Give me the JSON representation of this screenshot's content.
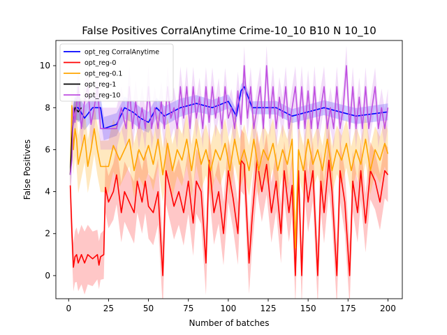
{
  "chart_data": {
    "type": "line",
    "title": "False Positives CorralAnytime Crime-10_10 B10 N 10_10",
    "xlabel": "Number of batches",
    "ylabel": "False Positives",
    "xlim": [
      -8,
      209
    ],
    "ylim": [
      -1.1,
      11.2
    ],
    "xticks": [
      0,
      25,
      50,
      75,
      100,
      125,
      150,
      175,
      200
    ],
    "yticks": [
      0,
      2,
      4,
      6,
      8,
      10
    ],
    "grid": false,
    "legend_position": "top-left",
    "series": [
      {
        "name": "opt_reg CorralAnytime",
        "color": "#0000ff",
        "band_alpha": 0.2,
        "knots": [
          [
            1,
            4.8
          ],
          [
            2,
            7.0
          ],
          [
            3,
            7.6
          ],
          [
            4,
            8.0
          ],
          [
            6,
            8.0
          ],
          [
            10,
            7.5
          ],
          [
            15,
            8.0
          ],
          [
            20,
            8.0
          ],
          [
            22,
            7.0
          ],
          [
            30,
            7.2
          ],
          [
            35,
            8.0
          ],
          [
            40,
            7.8
          ],
          [
            45,
            7.5
          ],
          [
            50,
            7.3
          ],
          [
            55,
            8.0
          ],
          [
            60,
            7.6
          ],
          [
            70,
            8.0
          ],
          [
            80,
            8.2
          ],
          [
            90,
            8.0
          ],
          [
            100,
            8.3
          ],
          [
            105,
            7.6
          ],
          [
            108,
            8.8
          ],
          [
            110,
            9.0
          ],
          [
            115,
            8.0
          ],
          [
            130,
            8.0
          ],
          [
            140,
            7.6
          ],
          [
            160,
            8.0
          ],
          [
            180,
            7.6
          ],
          [
            200,
            7.8
          ]
        ],
        "band_knots": [
          [
            1,
            0.6
          ],
          [
            50,
            0.5
          ],
          [
            110,
            0.3
          ],
          [
            200,
            0.4
          ]
        ]
      },
      {
        "name": "opt_reg-0",
        "color": "#ff0000",
        "band_alpha": 0.22,
        "knots": [
          [
            1,
            4.3
          ],
          [
            2,
            2.1
          ],
          [
            3,
            0.4
          ],
          [
            4,
            0.9
          ],
          [
            5,
            1.0
          ],
          [
            6,
            0.6
          ],
          [
            8,
            1.0
          ],
          [
            10,
            0.6
          ],
          [
            12,
            1.0
          ],
          [
            15,
            0.8
          ],
          [
            18,
            1.0
          ],
          [
            19,
            0.5
          ],
          [
            20,
            0.9
          ],
          [
            22,
            1.0
          ],
          [
            23,
            4.2
          ],
          [
            25,
            3.5
          ],
          [
            28,
            4.0
          ],
          [
            30,
            4.8
          ],
          [
            33,
            3.0
          ],
          [
            35,
            4.0
          ],
          [
            38,
            3.5
          ],
          [
            41,
            3.0
          ],
          [
            43,
            4.5
          ],
          [
            46,
            3.5
          ],
          [
            48,
            4.5
          ],
          [
            50,
            3.3
          ],
          [
            53,
            3.0
          ],
          [
            56,
            4.0
          ],
          [
            59,
            0.0
          ],
          [
            61,
            5.0
          ],
          [
            64,
            4.0
          ],
          [
            66,
            3.3
          ],
          [
            69,
            4.0
          ],
          [
            72,
            3.0
          ],
          [
            75,
            4.5
          ],
          [
            78,
            2.5
          ],
          [
            80,
            4.5
          ],
          [
            83,
            4.0
          ],
          [
            86,
            0.6
          ],
          [
            88,
            5.5
          ],
          [
            91,
            3.0
          ],
          [
            94,
            4.0
          ],
          [
            97,
            2.0
          ],
          [
            100,
            5.0
          ],
          [
            103,
            3.7
          ],
          [
            106,
            2.0
          ],
          [
            108,
            5.5
          ],
          [
            110,
            5.3
          ],
          [
            113,
            0.6
          ],
          [
            115,
            2.8
          ],
          [
            118,
            5.5
          ],
          [
            121,
            4.0
          ],
          [
            124,
            5.3
          ],
          [
            127,
            3.0
          ],
          [
            130,
            4.5
          ],
          [
            133,
            2.0
          ],
          [
            135,
            5.0
          ],
          [
            138,
            3.0
          ],
          [
            140,
            4.3
          ],
          [
            142,
            0.0
          ],
          [
            144,
            5.0
          ],
          [
            146,
            0.0
          ],
          [
            148,
            5.0
          ],
          [
            150,
            3.5
          ],
          [
            153,
            5.0
          ],
          [
            156,
            0.0
          ],
          [
            158,
            4.5
          ],
          [
            160,
            3.0
          ],
          [
            163,
            5.5
          ],
          [
            165,
            4.0
          ],
          [
            168,
            0.0
          ],
          [
            170,
            5.0
          ],
          [
            173,
            3.5
          ],
          [
            176,
            0.0
          ],
          [
            178,
            4.5
          ],
          [
            181,
            3.0
          ],
          [
            183,
            5.0
          ],
          [
            186,
            2.5
          ],
          [
            189,
            5.0
          ],
          [
            192,
            4.5
          ],
          [
            195,
            3.5
          ],
          [
            198,
            5.0
          ],
          [
            200,
            4.8
          ]
        ],
        "band_knots": [
          [
            1,
            1.0
          ],
          [
            5,
            1.3
          ],
          [
            10,
            1.5
          ],
          [
            20,
            1.1
          ],
          [
            30,
            1.4
          ],
          [
            60,
            1.6
          ],
          [
            100,
            1.5
          ],
          [
            140,
            1.4
          ],
          [
            170,
            1.5
          ],
          [
            200,
            1.3
          ]
        ]
      },
      {
        "name": "opt_reg-0.1",
        "color": "#ffa500",
        "band_alpha": 0.25,
        "knots": [
          [
            1,
            4.8
          ],
          [
            2,
            8.1
          ],
          [
            3,
            6.0
          ],
          [
            4,
            7.0
          ],
          [
            5,
            6.5
          ],
          [
            6,
            5.3
          ],
          [
            8,
            6.0
          ],
          [
            10,
            6.7
          ],
          [
            12,
            5.2
          ],
          [
            14,
            6.0
          ],
          [
            16,
            7.0
          ],
          [
            18,
            6.0
          ],
          [
            20,
            5.2
          ],
          [
            25,
            5.2
          ],
          [
            28,
            6.2
          ],
          [
            32,
            5.5
          ],
          [
            35,
            6.0
          ],
          [
            38,
            6.5
          ],
          [
            41,
            5.0
          ],
          [
            44,
            6.0
          ],
          [
            47,
            5.5
          ],
          [
            50,
            6.2
          ],
          [
            53,
            5.3
          ],
          [
            56,
            6.5
          ],
          [
            59,
            4.8
          ],
          [
            62,
            6.3
          ],
          [
            65,
            5.0
          ],
          [
            68,
            6.0
          ],
          [
            71,
            5.5
          ],
          [
            74,
            6.5
          ],
          [
            77,
            5.0
          ],
          [
            80,
            6.5
          ],
          [
            83,
            5.3
          ],
          [
            86,
            6.0
          ],
          [
            89,
            5.0
          ],
          [
            92,
            6.0
          ],
          [
            95,
            5.5
          ],
          [
            98,
            6.3
          ],
          [
            101,
            5.0
          ],
          [
            104,
            6.5
          ],
          [
            107,
            5.3
          ],
          [
            110,
            6.0
          ],
          [
            113,
            5.0
          ],
          [
            116,
            6.5
          ],
          [
            119,
            5.0
          ],
          [
            122,
            6.0
          ],
          [
            125,
            5.5
          ],
          [
            128,
            6.3
          ],
          [
            131,
            5.0
          ],
          [
            134,
            6.0
          ],
          [
            137,
            5.3
          ],
          [
            140,
            6.5
          ],
          [
            142,
            1.3
          ],
          [
            144,
            6.0
          ],
          [
            147,
            5.0
          ],
          [
            150,
            6.5
          ],
          [
            153,
            5.3
          ],
          [
            156,
            6.0
          ],
          [
            159,
            5.0
          ],
          [
            162,
            6.5
          ],
          [
            165,
            5.0
          ],
          [
            168,
            6.0
          ],
          [
            171,
            5.5
          ],
          [
            174,
            6.3
          ],
          [
            177,
            5.0
          ],
          [
            180,
            6.0
          ],
          [
            183,
            5.3
          ],
          [
            186,
            6.5
          ],
          [
            189,
            5.0
          ],
          [
            192,
            6.0
          ],
          [
            195,
            5.5
          ],
          [
            198,
            6.3
          ],
          [
            200,
            5.8
          ]
        ],
        "band_knots": [
          [
            1,
            1.0
          ],
          [
            5,
            1.4
          ],
          [
            15,
            1.2
          ],
          [
            40,
            1.3
          ],
          [
            100,
            1.2
          ],
          [
            150,
            1.2
          ],
          [
            200,
            1.1
          ]
        ]
      },
      {
        "name": "opt_reg-1",
        "color": "#000000",
        "band_alpha": 0.18,
        "knots": [
          [
            1,
            4.8
          ],
          [
            2,
            6.5
          ],
          [
            3,
            7.6
          ],
          [
            4,
            8.0
          ],
          [
            6,
            7.8
          ],
          [
            8,
            8.0
          ]
        ],
        "band_knots": [
          [
            1,
            0.5
          ],
          [
            8,
            0.5
          ]
        ]
      },
      {
        "name": "opt_reg-10",
        "color": "#bf4fe0",
        "band_alpha": 0.2,
        "knots": [
          [
            1,
            4.8
          ],
          [
            2,
            5.5
          ],
          [
            3,
            8.0
          ],
          [
            4,
            7.3
          ],
          [
            6,
            9.0
          ],
          [
            8,
            7.0
          ],
          [
            10,
            8.3
          ],
          [
            12,
            9.0
          ],
          [
            14,
            7.2
          ],
          [
            16,
            8.0
          ],
          [
            18,
            9.0
          ],
          [
            20,
            7.0
          ],
          [
            22,
            7.0
          ],
          [
            30,
            7.0
          ],
          [
            33,
            8.0
          ],
          [
            36,
            7.0
          ],
          [
            38,
            9.0
          ],
          [
            40,
            7.0
          ],
          [
            42,
            8.3
          ],
          [
            44,
            7.0
          ],
          [
            46,
            8.0
          ],
          [
            48,
            7.0
          ],
          [
            50,
            9.0
          ],
          [
            52,
            7.0
          ],
          [
            54,
            8.0
          ],
          [
            56,
            7.0
          ],
          [
            58,
            8.3
          ],
          [
            60,
            7.0
          ],
          [
            62,
            9.0
          ],
          [
            64,
            7.5
          ],
          [
            66,
            8.0
          ],
          [
            68,
            7.0
          ],
          [
            70,
            9.0
          ],
          [
            72,
            7.5
          ],
          [
            74,
            9.0
          ],
          [
            76,
            7.0
          ],
          [
            78,
            9.0
          ],
          [
            80,
            7.5
          ],
          [
            82,
            8.5
          ],
          [
            84,
            7.0
          ],
          [
            86,
            9.0
          ],
          [
            88,
            7.3
          ],
          [
            90,
            9.0
          ],
          [
            92,
            7.5
          ],
          [
            94,
            8.5
          ],
          [
            96,
            7.0
          ],
          [
            98,
            9.0
          ],
          [
            100,
            7.5
          ],
          [
            102,
            8.0
          ],
          [
            104,
            7.0
          ],
          [
            106,
            8.8
          ],
          [
            108,
            7.2
          ],
          [
            110,
            10.0
          ],
          [
            112,
            7.5
          ],
          [
            114,
            9.0
          ],
          [
            116,
            7.0
          ],
          [
            118,
            8.0
          ],
          [
            120,
            9.0
          ],
          [
            122,
            7.0
          ],
          [
            124,
            10.0
          ],
          [
            126,
            7.5
          ],
          [
            128,
            9.0
          ],
          [
            130,
            7.0
          ],
          [
            132,
            8.5
          ],
          [
            134,
            7.5
          ],
          [
            136,
            9.0
          ],
          [
            138,
            7.0
          ],
          [
            140,
            8.0
          ],
          [
            142,
            9.0
          ],
          [
            144,
            7.0
          ],
          [
            146,
            9.0
          ],
          [
            148,
            7.0
          ],
          [
            150,
            8.8
          ],
          [
            152,
            7.0
          ],
          [
            154,
            9.0
          ],
          [
            156,
            7.0
          ],
          [
            158,
            8.0
          ],
          [
            160,
            9.0
          ],
          [
            162,
            7.0
          ],
          [
            164,
            8.0
          ],
          [
            166,
            7.0
          ],
          [
            168,
            9.0
          ],
          [
            170,
            7.0
          ],
          [
            172,
            8.0
          ],
          [
            174,
            10.0
          ],
          [
            176,
            7.0
          ],
          [
            178,
            9.0
          ],
          [
            180,
            7.0
          ],
          [
            182,
            8.5
          ],
          [
            184,
            7.0
          ],
          [
            186,
            9.0
          ],
          [
            188,
            7.0
          ],
          [
            190,
            8.0
          ],
          [
            192,
            9.0
          ],
          [
            194,
            7.0
          ],
          [
            196,
            8.0
          ],
          [
            198,
            7.0
          ],
          [
            200,
            8.0
          ]
        ],
        "band_knots": [
          [
            1,
            0.8
          ],
          [
            10,
            1.0
          ],
          [
            50,
            1.0
          ],
          [
            100,
            0.9
          ],
          [
            150,
            1.0
          ],
          [
            200,
            0.9
          ]
        ]
      }
    ]
  }
}
